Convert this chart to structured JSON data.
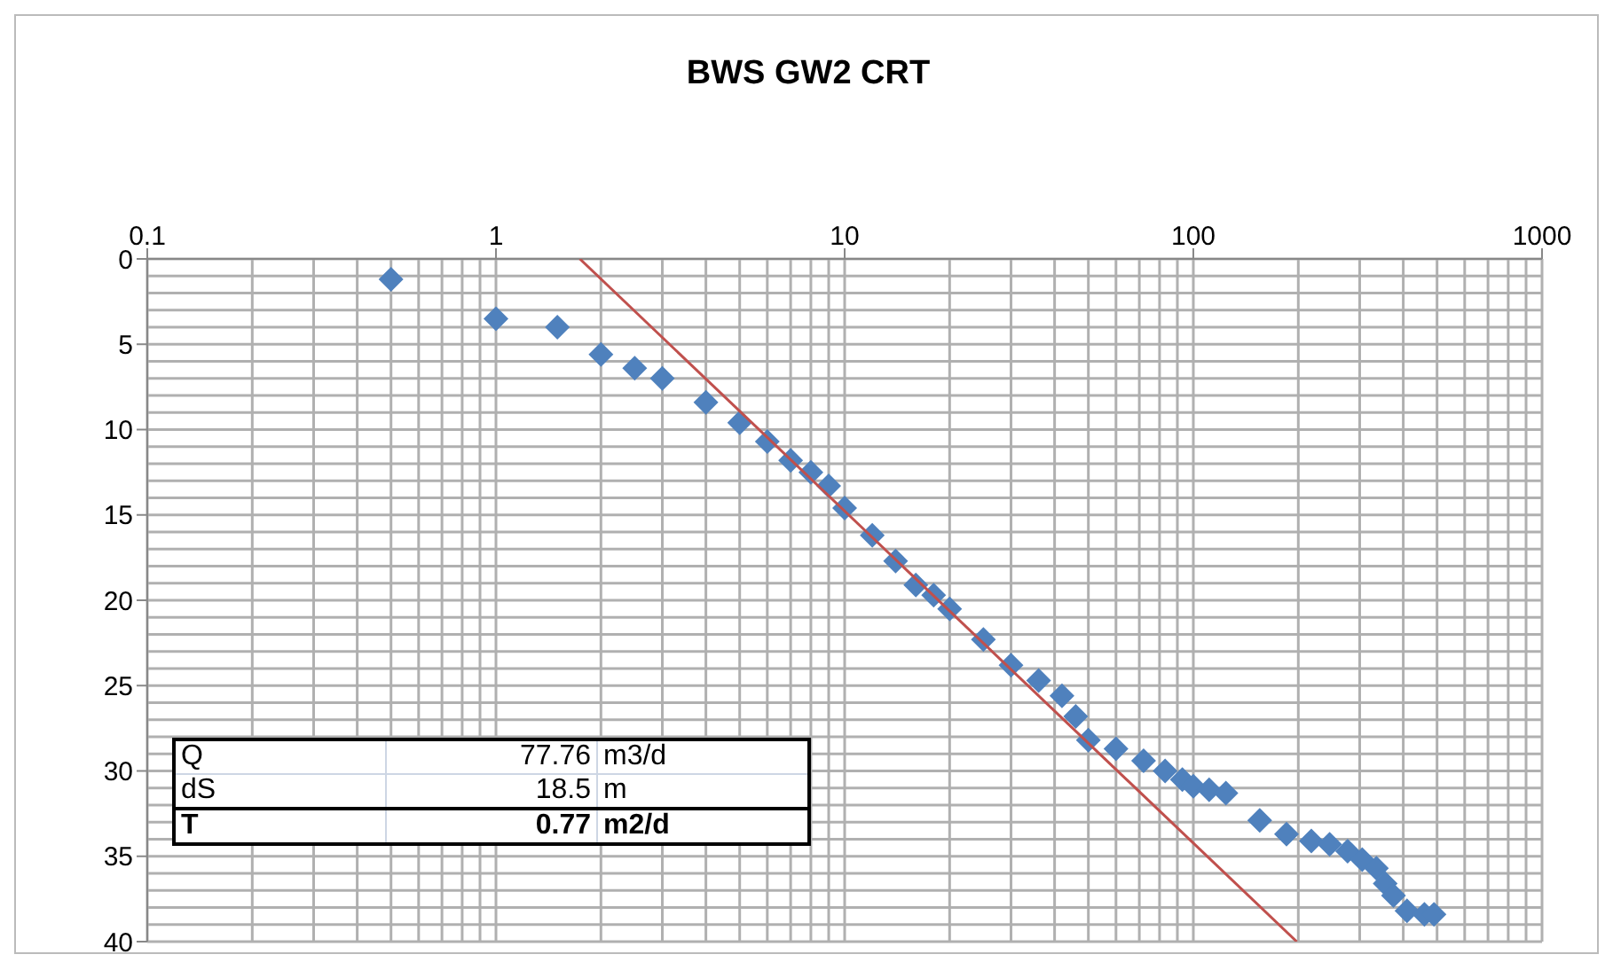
{
  "chart_data": {
    "type": "scatter",
    "title": "BWS GW2 CRT",
    "xlim": [
      0.1,
      1000
    ],
    "xticks": [
      0.1,
      1,
      10,
      100,
      1000
    ],
    "log": "x",
    "ylim": [
      40,
      0
    ],
    "yticks": [
      0,
      5,
      10,
      15,
      20,
      25,
      30,
      35,
      40
    ],
    "grid": true,
    "series": [
      {
        "color": "#4f81bd",
        "marker": "diamond",
        "x": [
          0.5,
          1,
          1.5,
          2,
          2.5,
          3,
          4,
          5,
          6,
          7,
          8,
          9,
          10,
          12,
          14,
          16,
          18,
          20,
          25,
          30,
          36,
          42,
          46,
          50,
          60,
          72,
          83,
          93,
          100,
          111,
          124,
          155,
          185,
          218,
          246,
          277,
          305,
          335,
          355,
          375,
          410,
          460,
          490
        ],
        "values": [
          1.2,
          3.5,
          4.0,
          5.6,
          6.4,
          7.0,
          8.4,
          9.6,
          10.7,
          11.8,
          12.5,
          13.3,
          14.6,
          16.2,
          17.7,
          19.1,
          19.7,
          20.5,
          22.3,
          23.8,
          24.7,
          25.6,
          26.8,
          28.2,
          28.7,
          29.4,
          30.0,
          30.5,
          30.9,
          31.1,
          31.3,
          32.9,
          33.7,
          34.1,
          34.3,
          34.7,
          35.2,
          35.7,
          36.6,
          37.3,
          38.2,
          38.4,
          38.4
        ]
      },
      {
        "type": "line",
        "color": "#c0504d",
        "marker": "none",
        "x": [
          1.74,
          198
        ],
        "values": [
          0,
          40
        ]
      }
    ],
    "annotations": [
      "Q",
      "77.76",
      "m3/d",
      "dS",
      "18.5",
      "m",
      "T",
      "0.77",
      "m2/d"
    ]
  }
}
